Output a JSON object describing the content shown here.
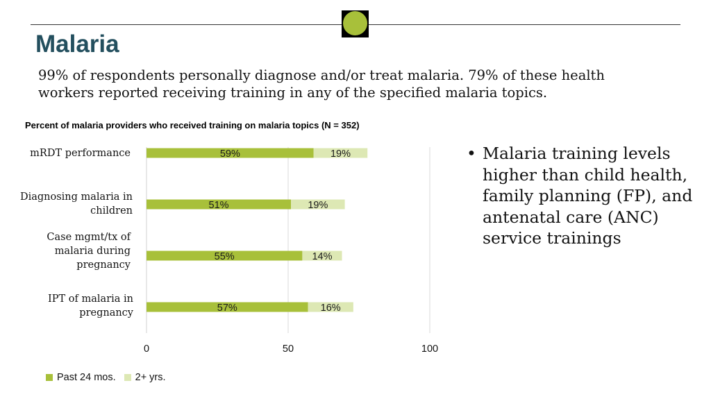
{
  "header": {
    "title": "Malaria",
    "subtitle": "99% of respondents personally diagnose and/or treat malaria. 79% of these health workers reported receiving training in any of the specified malaria topics."
  },
  "colors": {
    "accent": "#a8c03a",
    "light_accent": "#dde8b4",
    "title": "#234f5e"
  },
  "chart_data": {
    "type": "bar",
    "orientation": "horizontal",
    "stacked": true,
    "title": "Percent of malaria providers who received training on malaria topics (N = 352)",
    "xlabel": "",
    "ylabel": "",
    "categories": [
      "mRDT performance",
      "Diagnosing malaria in children",
      "Case mgmt/tx of malaria during pregnancy",
      "IPT of malaria in pregnancy"
    ],
    "series": [
      {
        "name": "Past 24 mos.",
        "values": [
          59,
          51,
          55,
          57
        ],
        "labels": [
          "59%",
          "51%",
          "55%",
          "57%"
        ],
        "color": "#a8c03a"
      },
      {
        "name": "2+ yrs.",
        "values": [
          19,
          19,
          14,
          16
        ],
        "labels": [
          "19%",
          "19%",
          "14%",
          "16%"
        ],
        "color": "#dde8b4"
      }
    ],
    "xlim": [
      0,
      100
    ],
    "xticks": [
      "0",
      "50",
      "100"
    ],
    "grid": true,
    "legend": "bottom-left"
  },
  "bullets": [
    "Malaria training levels higher than child health, family planning (FP), and antenatal care (ANC) service trainings"
  ],
  "bullet_glyph": "•"
}
